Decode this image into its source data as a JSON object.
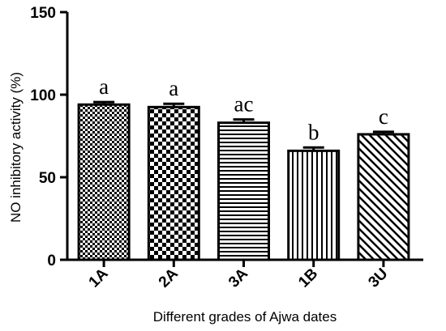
{
  "chart_data": {
    "type": "bar",
    "title": "",
    "xlabel": "Different grades of Ajwa dates",
    "ylabel": "NO inhibitory activity (%)",
    "ylim": [
      0,
      150
    ],
    "yticks": [
      "0",
      "50",
      "100",
      "150"
    ],
    "categories": [
      "1A",
      "2A",
      "3A",
      "1B",
      "3U"
    ],
    "values": [
      94,
      92.5,
      83,
      66,
      76
    ],
    "errors": [
      1.5,
      2,
      2,
      2,
      1.5
    ],
    "significance": [
      "a",
      "a",
      "ac",
      "b",
      "c"
    ],
    "patterns": [
      "fine-check",
      "coarse-check",
      "horizontal-lines",
      "vertical-lines",
      "diagonal-lines"
    ]
  }
}
